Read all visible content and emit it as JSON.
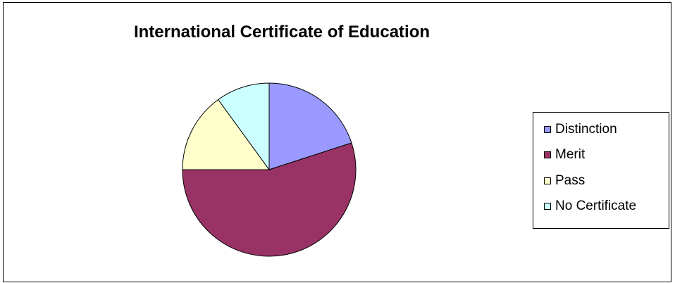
{
  "chart_data": {
    "type": "pie",
    "title": "International Certificate of Education",
    "categories": [
      "Distinction",
      "Merit",
      "Pass",
      "No Certificate"
    ],
    "values": [
      20,
      55,
      15,
      10
    ],
    "colors": [
      "#9999ff",
      "#993366",
      "#ffffcc",
      "#ccffff"
    ],
    "legend_position": "right",
    "start_angle_deg": 0,
    "direction": "clockwise"
  }
}
